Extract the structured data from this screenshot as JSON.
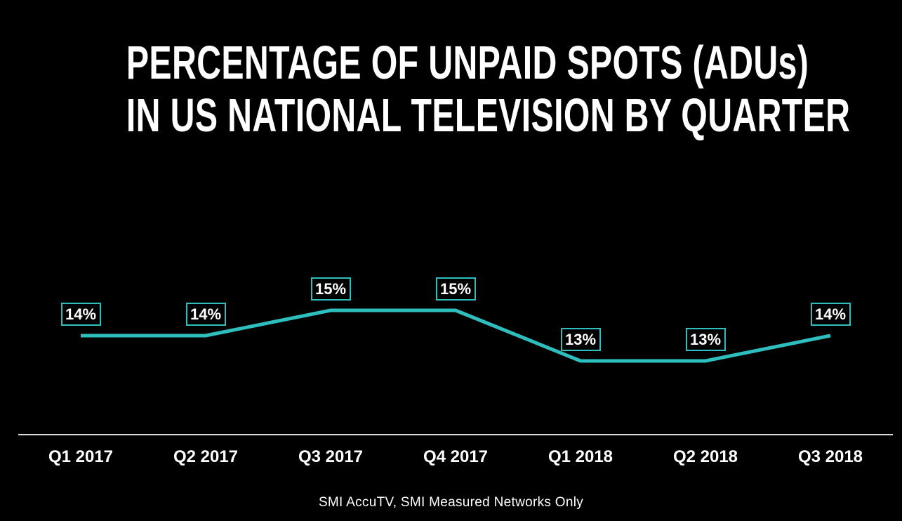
{
  "title": {
    "line1": "PERCENTAGE OF UNPAID SPOTS (ADUs)",
    "line2": "IN US NATIONAL TELEVISION BY QUARTER"
  },
  "footer": {
    "source": "SMI AccuTV, SMI Measured Networks Only"
  },
  "chart_data": {
    "type": "line",
    "title": "PERCENTAGE OF UNPAID SPOTS (ADUs) IN US NATIONAL TELEVISION BY QUARTER",
    "categories": [
      "Q1 2017",
      "Q2 2017",
      "Q3 2017",
      "Q4 2017",
      "Q1 2018",
      "Q2 2018",
      "Q3 2018"
    ],
    "values": [
      14,
      14,
      15,
      15,
      13,
      13,
      14
    ],
    "data_labels": [
      "14%",
      "14%",
      "15%",
      "15%",
      "13%",
      "13%",
      "14%"
    ],
    "xlabel": "",
    "ylabel": "",
    "ylim": [
      12,
      16
    ],
    "grid": false,
    "legend": false,
    "y_axis_visible": false,
    "source_note": "SMI AccuTV, SMI Measured Networks Only",
    "colors": {
      "line": "#2FBEBE",
      "data_label_border": "#2FBEBE",
      "data_label_text": "#FFFFFF",
      "axis_line": "#DBDBDB",
      "tick_text": "#FFFFFF",
      "title_text": "#FFFFFF",
      "background": "#000000"
    }
  }
}
